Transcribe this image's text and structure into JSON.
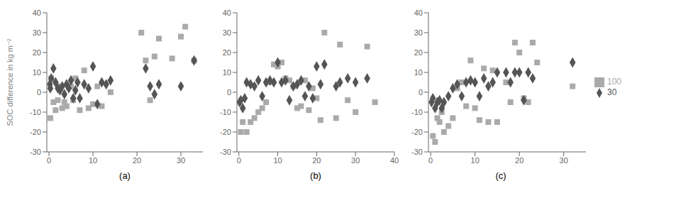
{
  "chart_data": [
    {
      "type": "scatter",
      "title": "(a)",
      "y_label": "SOC difference in kg m⁻²",
      "xlim": [
        -0.5,
        35
      ],
      "xticks": [
        0,
        10,
        20,
        30
      ],
      "ylim": [
        -30,
        40
      ],
      "yticks": [
        -30,
        -20,
        -10,
        0,
        10,
        20,
        30,
        40
      ],
      "grid": false,
      "series": [
        {
          "name": "100",
          "color": "#aaaaaa",
          "marker": "square",
          "x": [
            0.3,
            0.5,
            1.0,
            1.5,
            2.0,
            2.5,
            3.0,
            3.5,
            4.0,
            5.0,
            5.5,
            6.0,
            7.0,
            8.0,
            9.0,
            10.0,
            11.0,
            12.0,
            14.0,
            21.0,
            22.0,
            23.0,
            24.0,
            25.0,
            28.0,
            30.0,
            31.0,
            33.0
          ],
          "y": [
            -13,
            7,
            -5,
            -9,
            -4,
            3,
            -8,
            -5,
            -7,
            3,
            -4,
            7,
            -9,
            11,
            -8,
            -6,
            3,
            -7,
            0,
            30,
            16,
            -4,
            18,
            27,
            17,
            28,
            33,
            16
          ]
        },
        {
          "name": "30",
          "color": "#555555",
          "marker": "diamond",
          "x": [
            0.2,
            0.3,
            0.5,
            1.0,
            1.5,
            2.0,
            2.5,
            3.0,
            3.5,
            4.0,
            4.5,
            5.0,
            5.5,
            6.0,
            6.5,
            7.0,
            8.0,
            9.0,
            10.0,
            11.0,
            12.0,
            13.0,
            14.0,
            22.0,
            23.0,
            24.0,
            25.0,
            30.0,
            33.0
          ],
          "y": [
            4,
            2,
            7,
            12,
            5,
            2,
            1,
            3,
            -1,
            4,
            2,
            6,
            -3,
            1,
            5,
            -3,
            4,
            2,
            13,
            -6,
            5,
            4,
            6,
            12,
            3,
            -1,
            4,
            3,
            16
          ]
        }
      ]
    },
    {
      "type": "scatter",
      "title": "(b)",
      "xlim": [
        -0.5,
        40
      ],
      "xticks": [
        0,
        10,
        20,
        30,
        40
      ],
      "ylim": [
        -30,
        40
      ],
      "yticks": [
        -30,
        -20,
        -10,
        0,
        10,
        20,
        30,
        40
      ],
      "grid": false,
      "series": [
        {
          "name": "100",
          "color": "#aaaaaa",
          "marker": "square",
          "x": [
            0.5,
            1.0,
            2.0,
            3.0,
            4.0,
            5.0,
            6.0,
            7.0,
            8.0,
            9.0,
            10.0,
            11.0,
            12.0,
            13.0,
            14.0,
            15.0,
            16.0,
            17.0,
            18.0,
            19.0,
            20.0,
            21.0,
            22.0,
            25.0,
            26.0,
            28.0,
            30.0,
            33.0,
            35.0
          ],
          "y": [
            -20,
            -15,
            -20,
            -15,
            -13,
            -10,
            -8,
            -5,
            5,
            14,
            13,
            15,
            7,
            6,
            3,
            -8,
            -7,
            6,
            -9,
            2,
            -3,
            -14,
            30,
            -13,
            24,
            -4,
            -10,
            23,
            -5
          ]
        },
        {
          "name": "30",
          "color": "#555555",
          "marker": "diamond",
          "x": [
            0.2,
            0.5,
            1.0,
            1.5,
            2.0,
            3.0,
            4.0,
            5.0,
            6.0,
            7.0,
            8.0,
            9.0,
            10.0,
            11.0,
            12.0,
            13.0,
            14.0,
            15.0,
            16.0,
            17.0,
            18.0,
            19.0,
            20.0,
            21.0,
            22.0,
            25.0,
            26.0,
            28.0,
            30.0,
            33.0
          ],
          "y": [
            -5,
            -4,
            -8,
            -3,
            5,
            4,
            3,
            6,
            -2,
            5,
            6,
            5,
            15,
            5,
            6,
            -4,
            3,
            4,
            6,
            -2,
            3,
            -3,
            13,
            4,
            14,
            3,
            5,
            7,
            5,
            7
          ]
        }
      ]
    },
    {
      "type": "scatter",
      "title": "(c)",
      "xlim": [
        -0.5,
        35
      ],
      "xticks": [
        0,
        10,
        20,
        30
      ],
      "ylim": [
        -30,
        40
      ],
      "yticks": [
        -30,
        -20,
        -10,
        0,
        10,
        20,
        30,
        40
      ],
      "grid": false,
      "legend": "right",
      "series": [
        {
          "name": "100",
          "color": "#aaaaaa",
          "marker": "square",
          "x": [
            0.5,
            1.0,
            1.5,
            2.0,
            2.5,
            3.0,
            4.0,
            5.0,
            6.0,
            7.0,
            8.0,
            9.0,
            10.0,
            11.0,
            12.0,
            13.0,
            14.0,
            15.0,
            17.0,
            18.0,
            19.0,
            20.0,
            21.0,
            22.0,
            23.0,
            24.0,
            32.0
          ],
          "y": [
            -22,
            -25,
            -13,
            -15,
            -10,
            -20,
            -17,
            -13,
            2,
            5,
            -7,
            16,
            -8,
            -14,
            12,
            -15,
            11,
            -15,
            5,
            -5,
            25,
            20,
            -3,
            -5,
            25,
            15,
            3
          ]
        },
        {
          "name": "30",
          "color": "#555555",
          "marker": "diamond",
          "x": [
            0.2,
            0.5,
            1.0,
            1.5,
            2.0,
            2.5,
            3.0,
            4.0,
            5.0,
            6.0,
            7.0,
            8.0,
            9.0,
            10.0,
            11.0,
            12.0,
            13.0,
            14.0,
            15.0,
            17.0,
            18.0,
            19.0,
            20.0,
            21.0,
            22.0,
            23.0,
            32.0
          ],
          "y": [
            -5,
            -3,
            -8,
            -5,
            -4,
            -8,
            -5,
            -2,
            2,
            4,
            -2,
            5,
            6,
            5,
            -2,
            7,
            3,
            5,
            10,
            10,
            5,
            10,
            10,
            -4,
            10,
            7,
            15
          ]
        }
      ]
    }
  ]
}
